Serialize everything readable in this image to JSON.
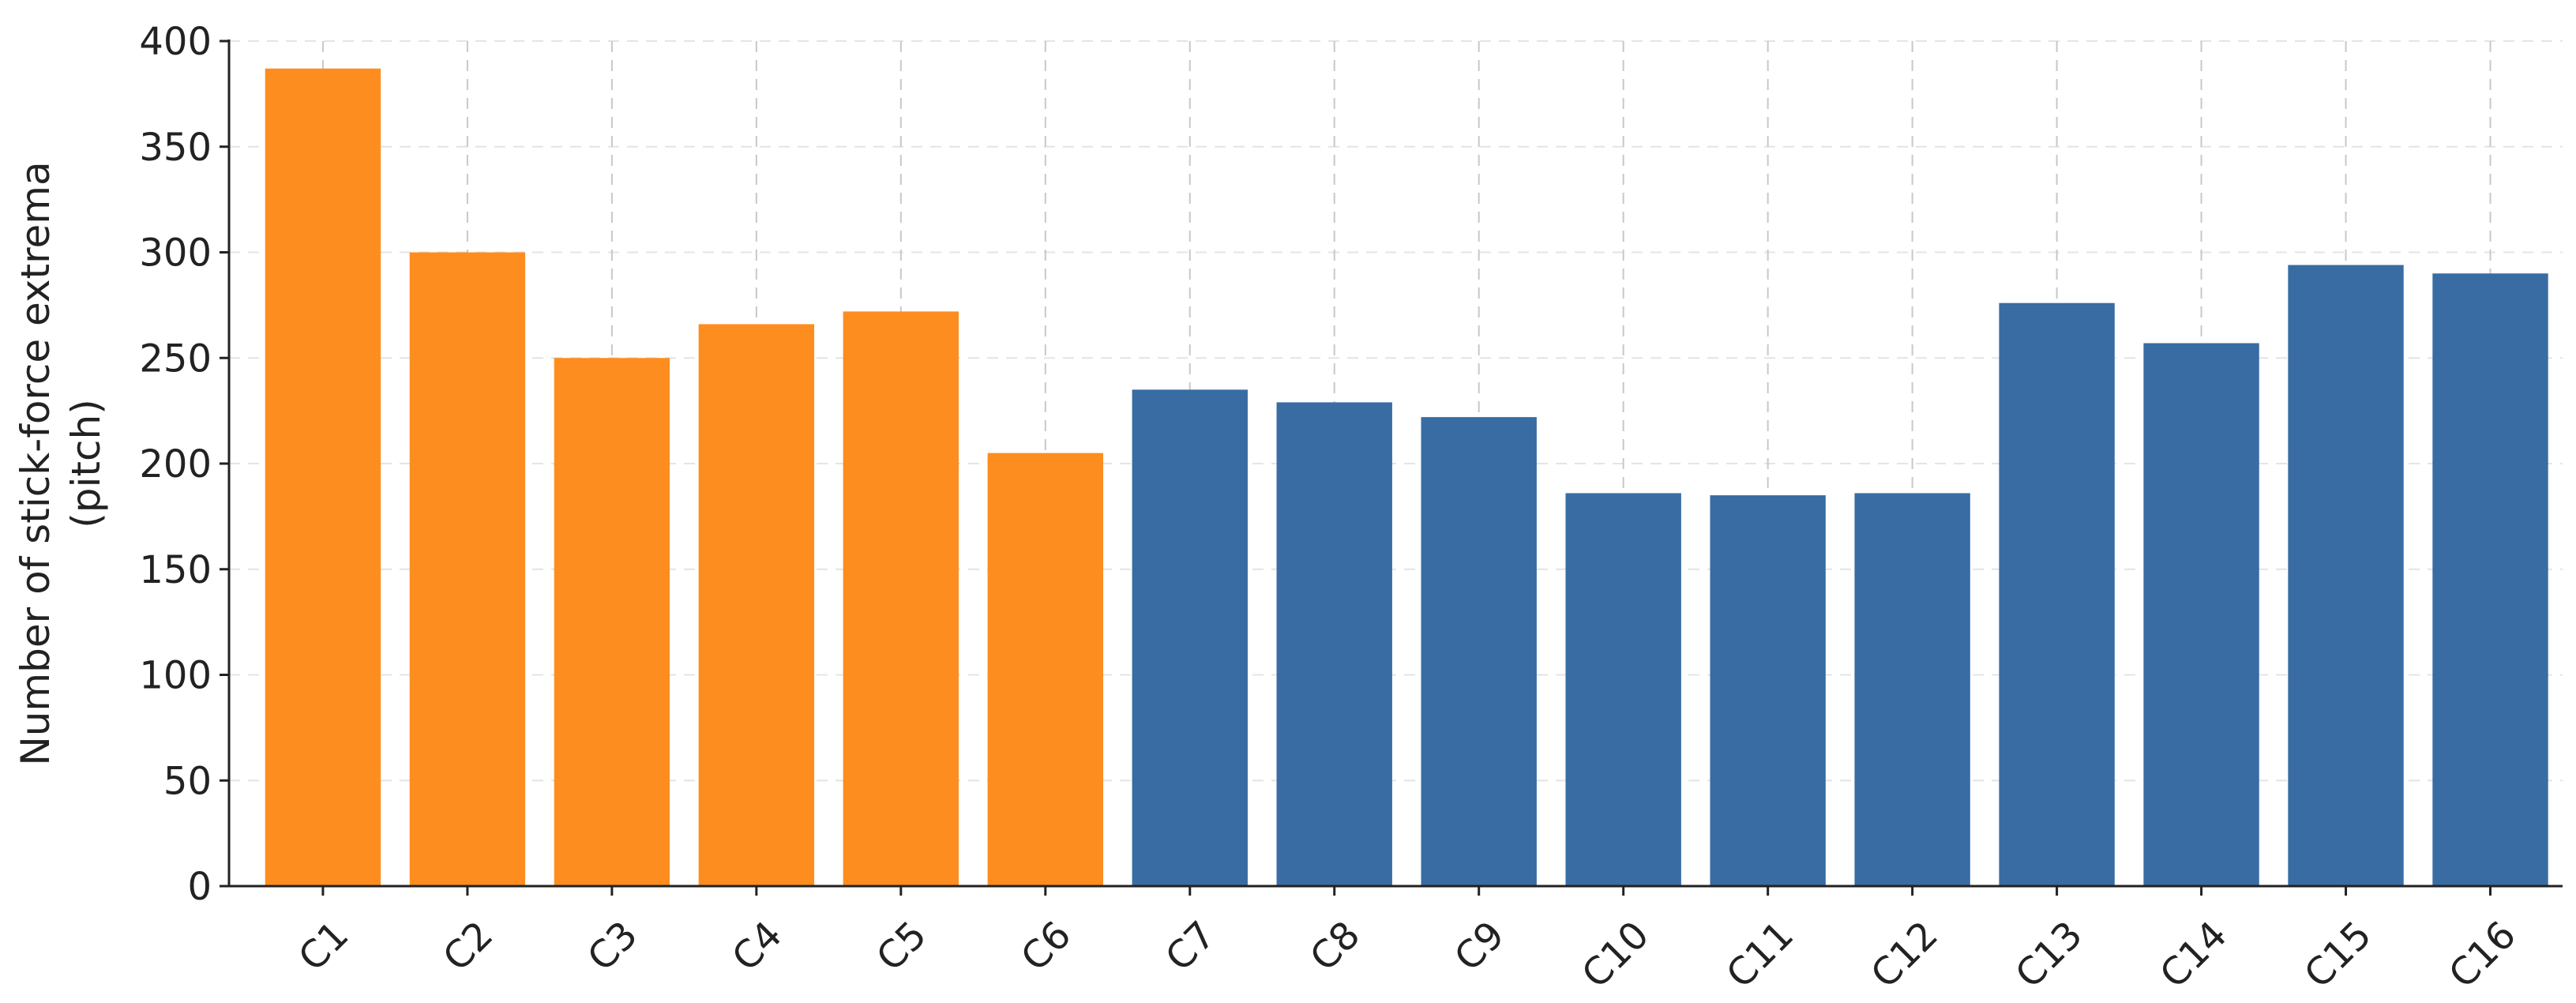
{
  "chart_data": {
    "type": "bar",
    "title": "",
    "xlabel": "",
    "ylabel": [
      "Number of stick-force extrema",
      "(pitch)"
    ],
    "ylim": [
      0,
      400
    ],
    "yticks": [
      0,
      50,
      100,
      150,
      200,
      250,
      300,
      350,
      400
    ],
    "grid": true,
    "categories": [
      "C1",
      "C2",
      "C3",
      "C4",
      "C5",
      "C6",
      "C7",
      "C8",
      "C9",
      "C10",
      "C11",
      "C12",
      "C13",
      "C14",
      "C15",
      "C16"
    ],
    "values": [
      387,
      300,
      250,
      266,
      272,
      205,
      235,
      229,
      222,
      186,
      185,
      186,
      276,
      257,
      294,
      290
    ],
    "bar_colors": [
      "#fd8d1f",
      "#fd8d1f",
      "#fd8d1f",
      "#fd8d1f",
      "#fd8d1f",
      "#fd8d1f",
      "#386ca3",
      "#386ca3",
      "#386ca3",
      "#386ca3",
      "#386ca3",
      "#386ca3",
      "#386ca3",
      "#386ca3",
      "#386ca3",
      "#386ca3"
    ]
  }
}
